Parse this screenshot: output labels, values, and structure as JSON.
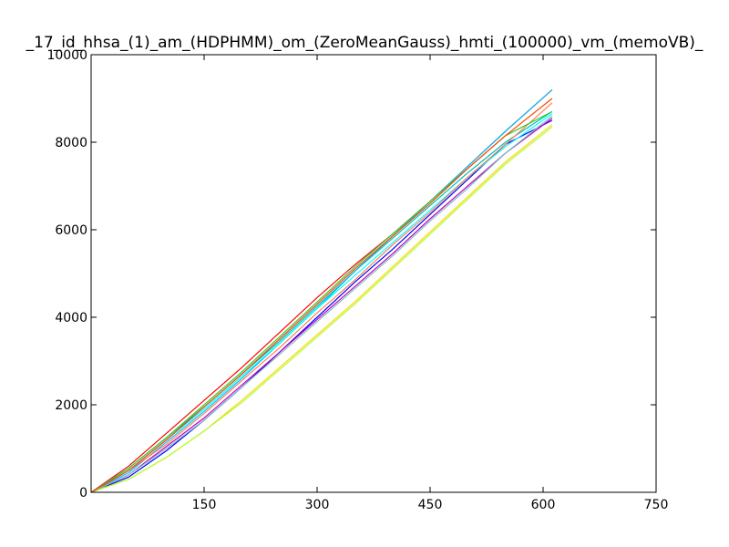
{
  "chart_data": {
    "type": "line",
    "title": "_17_id_hhsa_(1)_am_(HDPHMM)_om_(ZeroMeanGauss)_hmti_(100000)_vm_(memoVB)_",
    "xlabel": "",
    "ylabel": "",
    "xlim": [
      0,
      750
    ],
    "ylim": [
      0,
      10000
    ],
    "xticks": [
      150,
      300,
      450,
      600,
      750
    ],
    "yticks": [
      0,
      2000,
      4000,
      6000,
      8000,
      10000
    ],
    "grid": false,
    "legend": "none",
    "series": [
      {
        "color": "#ff0000",
        "x": [
          0,
          50,
          100,
          150,
          200,
          250,
          300,
          350,
          400,
          450,
          500,
          550,
          612
        ],
        "y": [
          0,
          600,
          1350,
          2100,
          2850,
          3650,
          4450,
          5200,
          5900,
          6650,
          7450,
          8250,
          9200
        ]
      },
      {
        "color": "#0000ff",
        "x": [
          0,
          50,
          100,
          150,
          200,
          250,
          300,
          350,
          400,
          450,
          500,
          550,
          612
        ],
        "y": [
          0,
          350,
          950,
          1650,
          2400,
          3200,
          4000,
          4800,
          5550,
          6350,
          7150,
          7950,
          8500
        ]
      },
      {
        "color": "#00bfbf",
        "x": [
          0,
          50,
          100,
          150,
          200,
          250,
          300,
          350,
          400,
          450,
          500,
          550,
          612
        ],
        "y": [
          0,
          550,
          1250,
          1950,
          2700,
          3450,
          4250,
          5050,
          5800,
          6550,
          7300,
          8000,
          8700
        ]
      },
      {
        "color": "#00bfff",
        "x": [
          0,
          50,
          100,
          150,
          200,
          250,
          300,
          350,
          400,
          450,
          500,
          550,
          612
        ],
        "y": [
          0,
          450,
          1150,
          1850,
          2600,
          3400,
          4200,
          5050,
          5850,
          6650,
          7450,
          8250,
          9200
        ]
      },
      {
        "color": "#00ffff",
        "x": [
          0,
          50,
          100,
          150,
          200,
          250,
          300,
          350,
          400,
          450,
          500,
          550,
          612
        ],
        "y": [
          0,
          500,
          1200,
          1900,
          2650,
          3400,
          4200,
          4950,
          5700,
          6450,
          7200,
          7900,
          8650
        ]
      },
      {
        "color": "#bf00bf",
        "x": [
          0,
          50,
          100,
          150,
          200,
          250,
          300,
          350,
          400,
          450,
          500,
          550,
          612
        ],
        "y": [
          0,
          400,
          1050,
          1700,
          2450,
          3200,
          3950,
          4700,
          5450,
          6250,
          7000,
          7750,
          8550
        ]
      },
      {
        "color": "#ff7f50",
        "x": [
          0,
          50,
          100,
          150,
          200,
          250,
          300,
          350,
          400,
          450,
          500,
          550,
          612
        ],
        "y": [
          0,
          500,
          1100,
          1800,
          2550,
          3300,
          4100,
          4850,
          5650,
          6400,
          7200,
          7950,
          8900
        ]
      },
      {
        "color": "#ffd700",
        "x": [
          0,
          50,
          100,
          150,
          200,
          250,
          300,
          350,
          400,
          450,
          500,
          550,
          612
        ],
        "y": [
          0,
          300,
          800,
          1400,
          2100,
          2850,
          3600,
          4350,
          5150,
          5950,
          6750,
          7550,
          8400
        ]
      },
      {
        "color": "#adff2f",
        "x": [
          0,
          50,
          100,
          150,
          200,
          250,
          300,
          350,
          400,
          450,
          500,
          550,
          612
        ],
        "y": [
          0,
          300,
          800,
          1400,
          2050,
          2800,
          3550,
          4300,
          5100,
          5900,
          6700,
          7500,
          8350
        ]
      },
      {
        "color": "#7fbfbf",
        "x": [
          0,
          50,
          100,
          150,
          200,
          250,
          300,
          350,
          400,
          450,
          500,
          550,
          612
        ],
        "y": [
          0,
          400,
          1000,
          1650,
          2400,
          3150,
          3900,
          4650,
          5400,
          6200,
          6950,
          7750,
          8600
        ]
      },
      {
        "color": "#32cd32",
        "x": [
          0,
          50,
          100,
          150,
          200,
          250,
          300,
          350,
          400,
          450,
          500,
          550,
          612
        ],
        "y": [
          0,
          550,
          1250,
          2000,
          2750,
          3550,
          4350,
          5150,
          5900,
          6650,
          7400,
          8150,
          8700
        ]
      },
      {
        "color": "#ff4500",
        "x": [
          0,
          50,
          100,
          150,
          200,
          250,
          300,
          350,
          400,
          450,
          500,
          550,
          612
        ],
        "y": [
          0,
          500,
          1200,
          1950,
          2700,
          3500,
          4300,
          5100,
          5850,
          6600,
          7400,
          8150,
          9000
        ]
      }
    ]
  }
}
